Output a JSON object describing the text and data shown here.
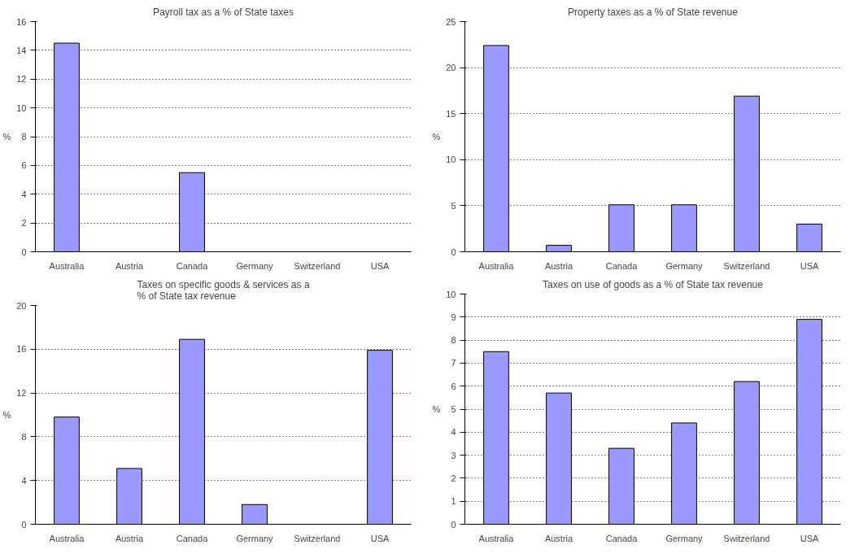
{
  "chart_data": [
    {
      "type": "bar",
      "title": "Payroll tax as a % of State taxes",
      "ylabel": "%",
      "categories": [
        "Australia",
        "Austria",
        "Canada",
        "Germany",
        "Switzerland",
        "USA"
      ],
      "values": [
        14.5,
        null,
        5.5,
        null,
        null,
        null
      ],
      "color": "#9999ff",
      "ylim": [
        0,
        16
      ],
      "yticks": [
        0,
        2,
        4,
        6,
        8,
        10,
        12,
        14,
        16
      ],
      "grid": "y"
    },
    {
      "type": "bar",
      "title": "Property taxes as a % of State revenue",
      "ylabel": "%",
      "categories": [
        "Australia",
        "Austria",
        "Canada",
        "Germany",
        "Switzerland",
        "USA"
      ],
      "values": [
        22.4,
        0.7,
        5.1,
        5.1,
        16.9,
        3.0
      ],
      "color": "#9999ff",
      "ylim": [
        0,
        25
      ],
      "yticks": [
        0,
        5,
        10,
        15,
        20,
        25
      ],
      "grid": "y"
    },
    {
      "type": "bar",
      "title": "Taxes on specific goods & services as a % of State tax revenue",
      "ylabel": "%",
      "categories": [
        "Australia",
        "Austria",
        "Canada",
        "Germany",
        "Switzerland",
        "USA"
      ],
      "values": [
        9.8,
        5.1,
        16.9,
        1.8,
        null,
        15.9
      ],
      "color": "#9999ff",
      "ylim": [
        0,
        20
      ],
      "yticks": [
        0,
        4,
        8,
        12,
        16,
        20
      ],
      "grid": "y"
    },
    {
      "type": "bar",
      "title": "Taxes on use of goods as a % of State tax revenue",
      "ylabel": "%",
      "categories": [
        "Australia",
        "Austria",
        "Canada",
        "Germany",
        "Switzerland",
        "USA"
      ],
      "values": [
        7.5,
        5.7,
        3.3,
        4.4,
        6.2,
        8.9
      ],
      "color": "#9999ff",
      "ylim": [
        0,
        10
      ],
      "yticks": [
        0,
        1,
        2,
        3,
        4,
        5,
        6,
        7,
        8,
        9,
        10
      ],
      "grid": "y"
    }
  ]
}
